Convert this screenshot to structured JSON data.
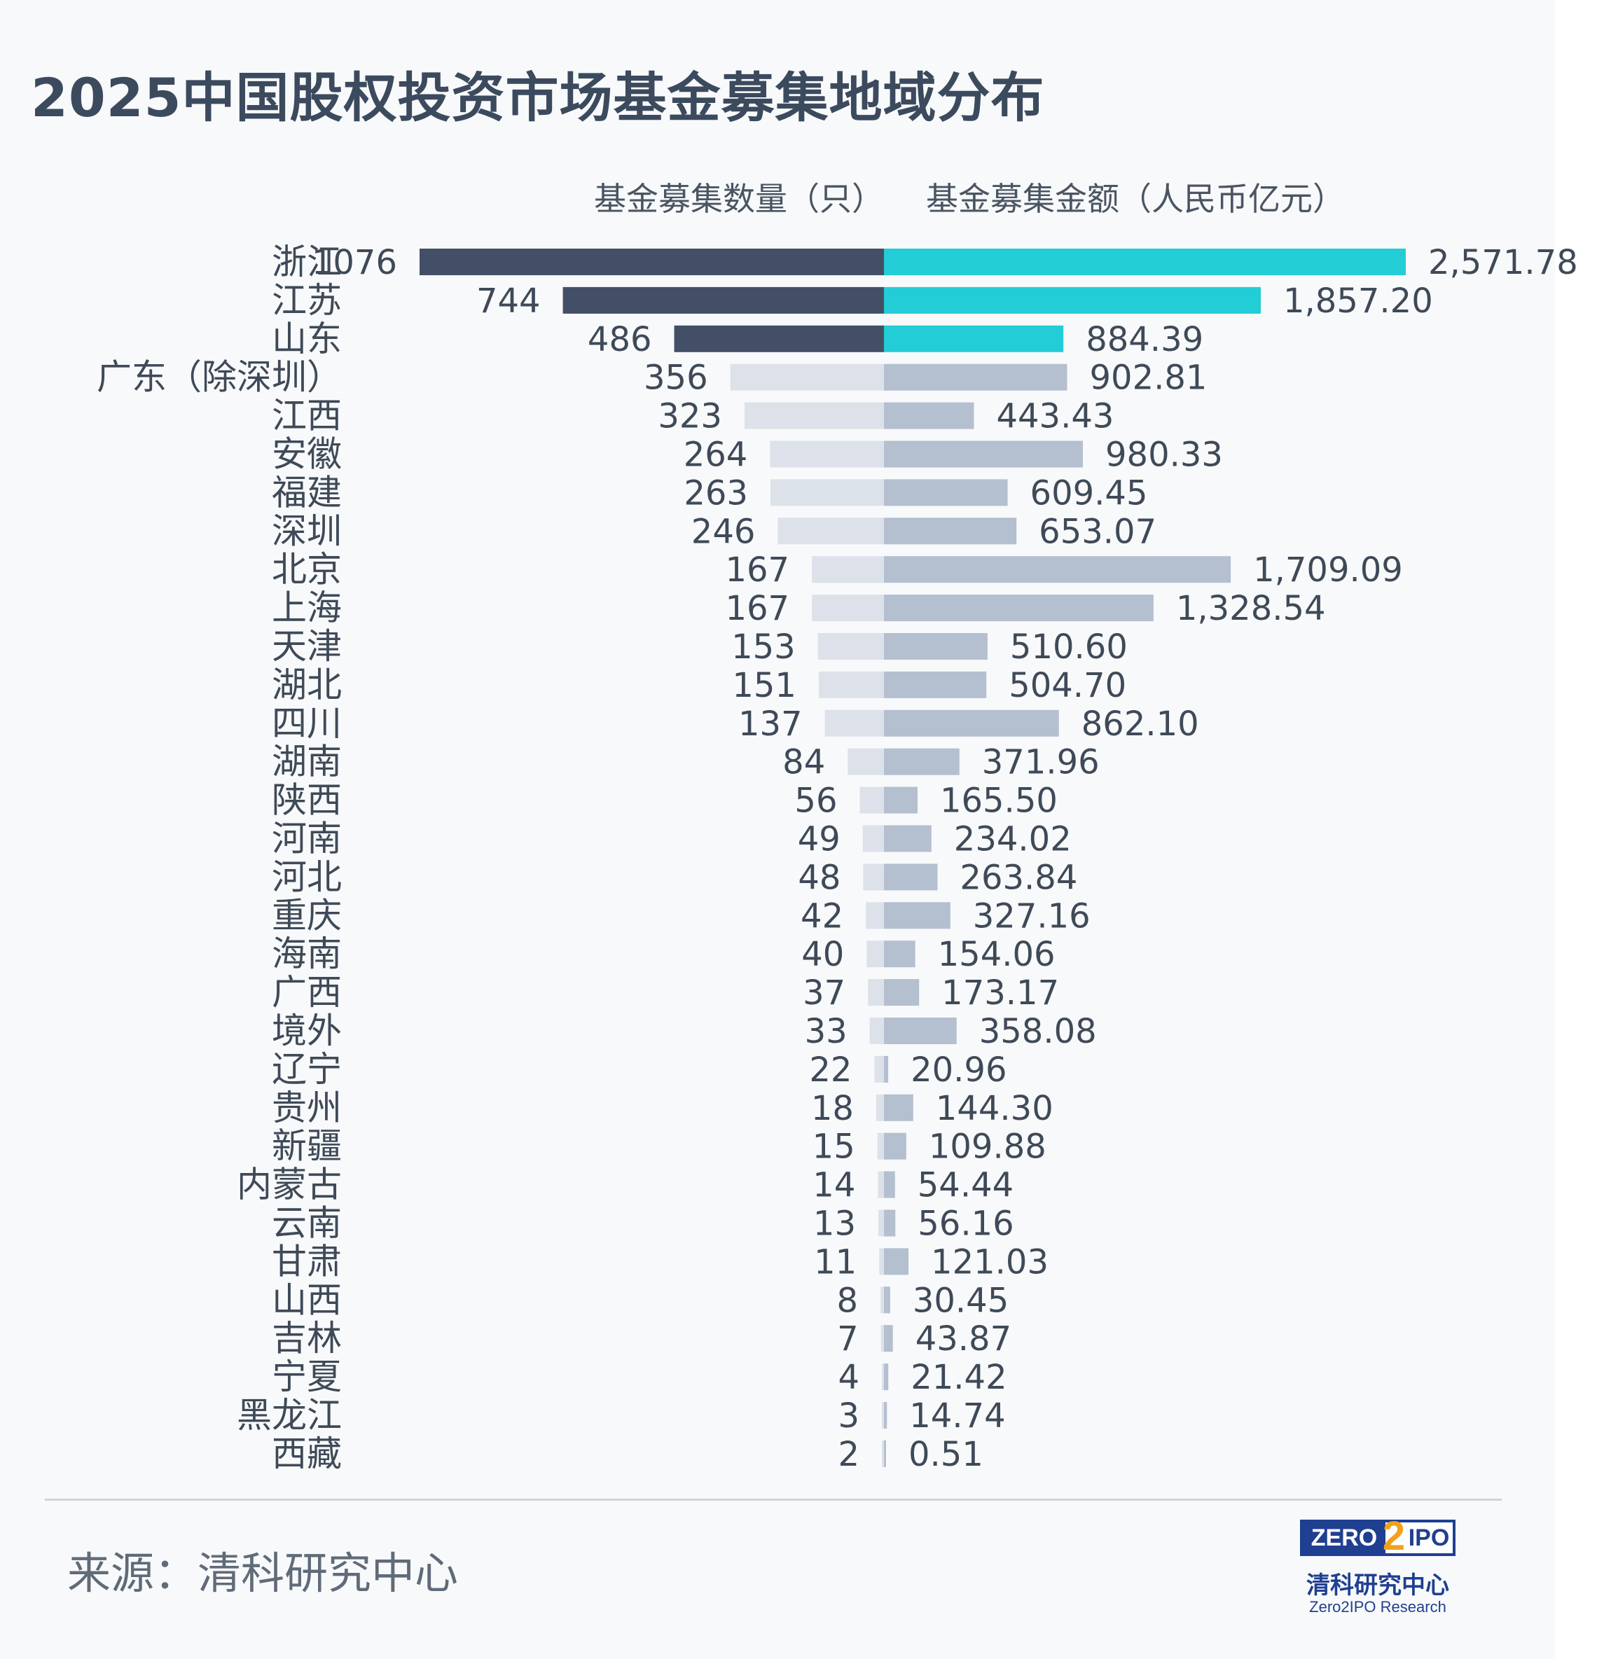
{
  "title": "2025中国股权投资市场基金募集地域分布",
  "source": "来源：清科研究中心",
  "logo": {
    "zero": "ZERO",
    "two": "2",
    "ipo": "IPO",
    "cn": "清科研究中心",
    "en": "Zero2IPO Research"
  },
  "colors": {
    "count_highlight": "#434f66",
    "count_normal": "#dde2ea",
    "amount_highlight": "#22cdd6",
    "amount_normal": "#b4bfcf",
    "label": "#3f4a58"
  },
  "chart_data": {
    "type": "bar",
    "orientation": "horizontal-diverging",
    "title": "2025中国股权投资市场基金募集地域分布",
    "series": [
      {
        "name": "基金募集数量（只）",
        "direction": "left"
      },
      {
        "name": "基金募集金额（人民币亿元）",
        "direction": "right"
      }
    ],
    "categories": [
      "浙江",
      "江苏",
      "山东",
      "广东（除深圳）",
      "江西",
      "安徽",
      "福建",
      "深圳",
      "北京",
      "上海",
      "天津",
      "湖北",
      "四川",
      "湖南",
      "陕西",
      "河南",
      "河北",
      "重庆",
      "海南",
      "广西",
      "境外",
      "辽宁",
      "贵州",
      "新疆",
      "内蒙古",
      "云南",
      "甘肃",
      "山西",
      "吉林",
      "宁夏",
      "黑龙江",
      "西藏"
    ],
    "counts": [
      1076,
      744,
      486,
      356,
      323,
      264,
      263,
      246,
      167,
      167,
      153,
      151,
      137,
      84,
      56,
      49,
      48,
      42,
      40,
      37,
      33,
      22,
      18,
      15,
      14,
      13,
      11,
      8,
      7,
      4,
      3,
      2
    ],
    "count_labels": [
      "1076",
      "744",
      "486",
      "356",
      "323",
      "264",
      "263",
      "246",
      "167",
      "167",
      "153",
      "151",
      "137",
      "84",
      "56",
      "49",
      "48",
      "42",
      "40",
      "37",
      "33",
      "22",
      "18",
      "15",
      "14",
      "13",
      "11",
      "8",
      "7",
      "4",
      "3",
      "2"
    ],
    "amounts": [
      2571.78,
      1857.2,
      884.39,
      902.81,
      443.43,
      980.33,
      609.45,
      653.07,
      1709.09,
      1328.54,
      510.6,
      504.7,
      862.1,
      371.96,
      165.5,
      234.02,
      263.84,
      327.16,
      154.06,
      173.17,
      358.08,
      20.96,
      144.3,
      109.88,
      54.44,
      56.16,
      121.03,
      30.45,
      43.87,
      21.42,
      14.74,
      0.51
    ],
    "amount_labels": [
      "2,571.78",
      "1,857.20",
      "884.39",
      "902.81",
      "443.43",
      "980.33",
      "609.45",
      "653.07",
      "1,709.09",
      "1,328.54",
      "510.60",
      "504.70",
      "862.10",
      "371.96",
      "165.50",
      "234.02",
      "263.84",
      "327.16",
      "154.06",
      "173.17",
      "358.08",
      "20.96",
      "144.30",
      "109.88",
      "54.44",
      "56.16",
      "121.03",
      "30.45",
      "43.87",
      "21.42",
      "14.74",
      "0.51"
    ],
    "count_highlight_top_n": 3,
    "amount_highlight_top_n": 3
  }
}
